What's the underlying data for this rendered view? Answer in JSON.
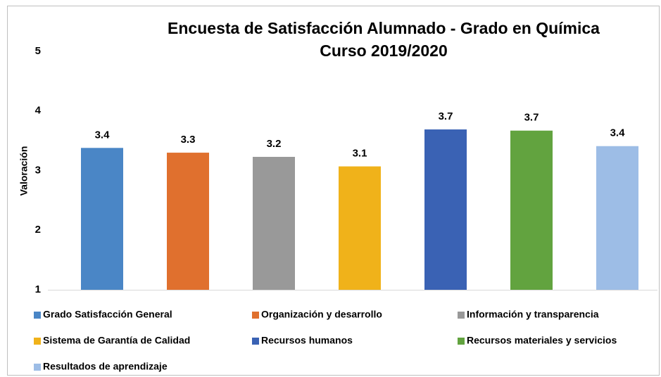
{
  "chart_data": {
    "type": "bar",
    "title": "Encuesta de Satisfacción Alumnado - Grado en Química",
    "subtitle": "Curso 2019/2020",
    "y_label": "Valoración",
    "ylim": [
      1,
      5
    ],
    "yticks": [
      1,
      2,
      3,
      4,
      5
    ],
    "grid": false,
    "legend": "bottom",
    "series": [
      {
        "name": "Grado Satisfacción General",
        "color": "#4a86c6",
        "values": [
          3.38
        ],
        "value_labels": [
          "3.4"
        ]
      },
      {
        "name": "Organización y desarrollo",
        "color": "#e0702e",
        "values": [
          3.3
        ],
        "value_labels": [
          "3.3"
        ]
      },
      {
        "name": "Información y transparencia",
        "color": "#999999",
        "values": [
          3.23
        ],
        "value_labels": [
          "3.2"
        ]
      },
      {
        "name": "Sistema de Garantía de Calidad",
        "color": "#f0b21a",
        "values": [
          3.07
        ],
        "value_labels": [
          "3.1"
        ]
      },
      {
        "name": "Recursos humanos",
        "color": "#3a62b4",
        "values": [
          3.69
        ],
        "value_labels": [
          "3.7"
        ]
      },
      {
        "name": "Recursos materiales y servicios",
        "color": "#62a33f",
        "values": [
          3.67
        ],
        "value_labels": [
          "3.7"
        ]
      },
      {
        "name": "Resultados de aprendizaje",
        "color": "#9dbde6",
        "values": [
          3.41
        ],
        "value_labels": [
          "3.4"
        ]
      }
    ]
  }
}
